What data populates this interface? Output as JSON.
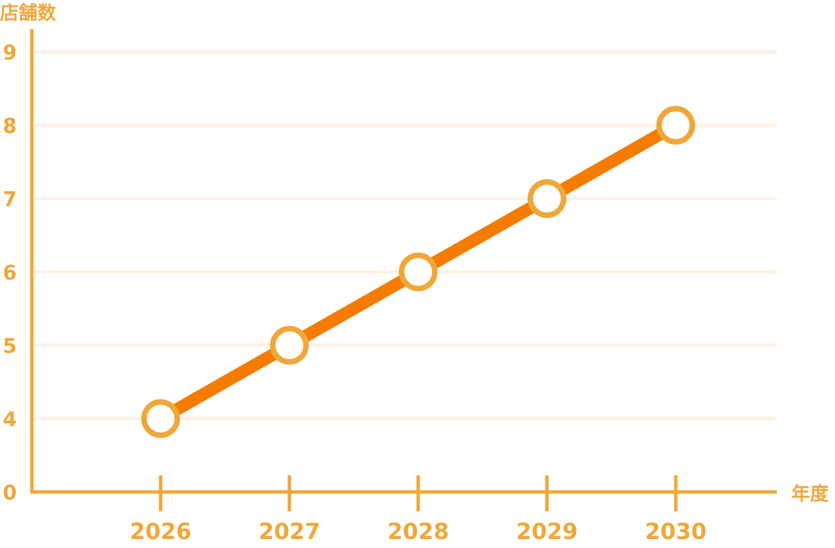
{
  "chart_data": {
    "type": "line",
    "ylabel": "店舗数",
    "xlabel": "年度",
    "x": [
      "2026",
      "2027",
      "2028",
      "2029",
      "2030"
    ],
    "series": [
      {
        "values": [
          4,
          5,
          6,
          7,
          8
        ]
      }
    ],
    "y_ticks": [
      "0",
      "4",
      "5",
      "6",
      "7",
      "8",
      "9"
    ],
    "y_tick_values": [
      0,
      4,
      5,
      6,
      7,
      8,
      9
    ],
    "ylim": [
      0,
      9
    ],
    "y_axis_break": "between 0 and 4",
    "grid": true,
    "legend": "none",
    "colors": {
      "axis": "#F0A73A",
      "line": "#F57C00",
      "marker_fill": "#FFFFFF",
      "marker_stroke": "#F0A73A",
      "grid": "#FDF1E6",
      "text": "#F0A73A"
    }
  }
}
